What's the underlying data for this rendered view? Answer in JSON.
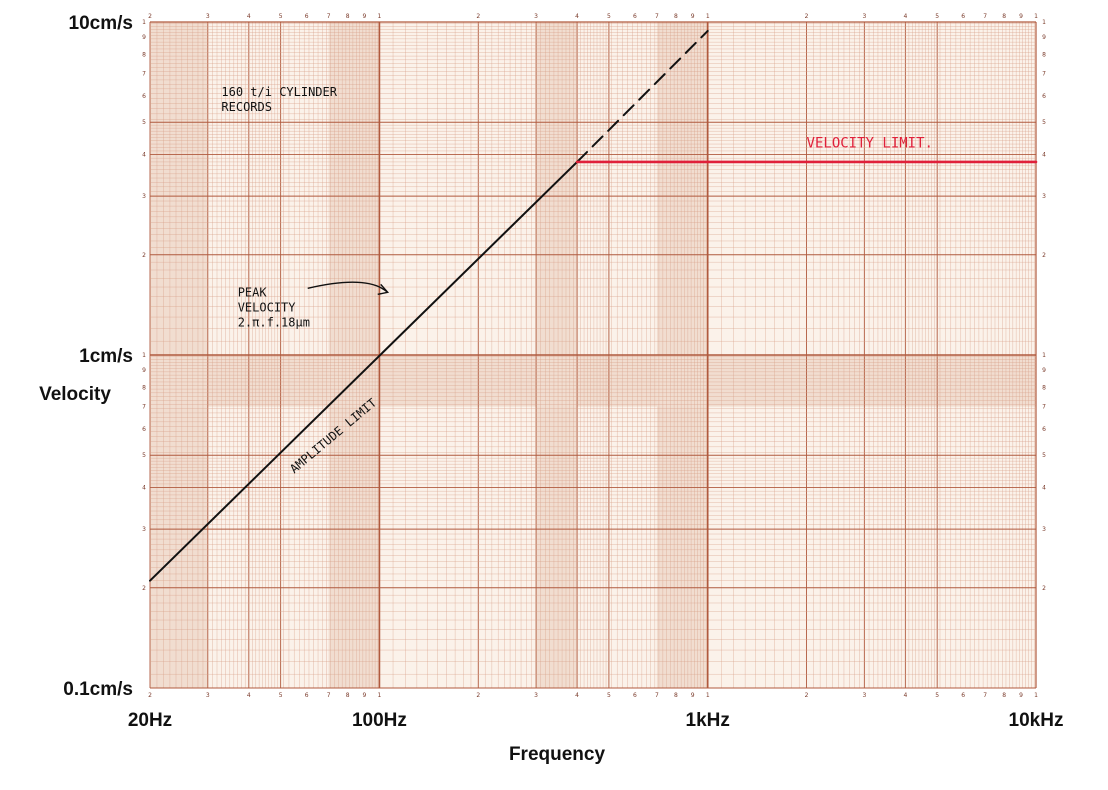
{
  "chart_data": {
    "type": "line",
    "x_scale": "log",
    "y_scale": "log",
    "xlim": [
      20,
      10000
    ],
    "ylim": [
      0.1,
      10
    ],
    "xlabel": "Frequency",
    "ylabel": "Velocity",
    "x_tick_labels": [
      {
        "value": 20,
        "label": "20Hz"
      },
      {
        "value": 100,
        "label": "100Hz"
      },
      {
        "value": 1000,
        "label": "1kHz"
      },
      {
        "value": 10000,
        "label": "10kHz"
      }
    ],
    "y_tick_labels": [
      {
        "value": 10,
        "label": "10cm/s"
      },
      {
        "value": 1,
        "label": "1cm/s"
      },
      {
        "value": 0.1,
        "label": "0.1cm/s"
      }
    ],
    "grid": true,
    "series": [
      {
        "style": "solid",
        "color": "#111111",
        "x": [
          20,
          400
        ],
        "y": [
          0.21,
          3.8
        ]
      },
      {
        "style": "dashed",
        "color": "#111111",
        "x": [
          400,
          1000
        ],
        "y": [
          3.8,
          9.4
        ]
      },
      {
        "style": "solid",
        "color": "#e0203a",
        "x": [
          400,
          10000
        ],
        "y": [
          3.8,
          3.8
        ]
      }
    ],
    "annotations": [
      {
        "text_lines": [
          "160 t/i CYLINDER",
          "RECORDS"
        ],
        "x": 33,
        "y": 6.0,
        "color": "#111111"
      },
      {
        "text_lines": [
          "PEAK",
          "VELOCITY",
          "2.π.f.18µm"
        ],
        "x": 37,
        "y": 1.5,
        "color": "#111111"
      },
      {
        "text_lines": [
          "AMPLITUDE LIMIT"
        ],
        "x": 55,
        "y": 0.44,
        "rotate": -40,
        "color": "#111111"
      },
      {
        "text_lines": [
          "VELOCITY LIMIT."
        ],
        "x": 2000,
        "y": 4.2,
        "color": "#e0203a"
      }
    ]
  }
}
